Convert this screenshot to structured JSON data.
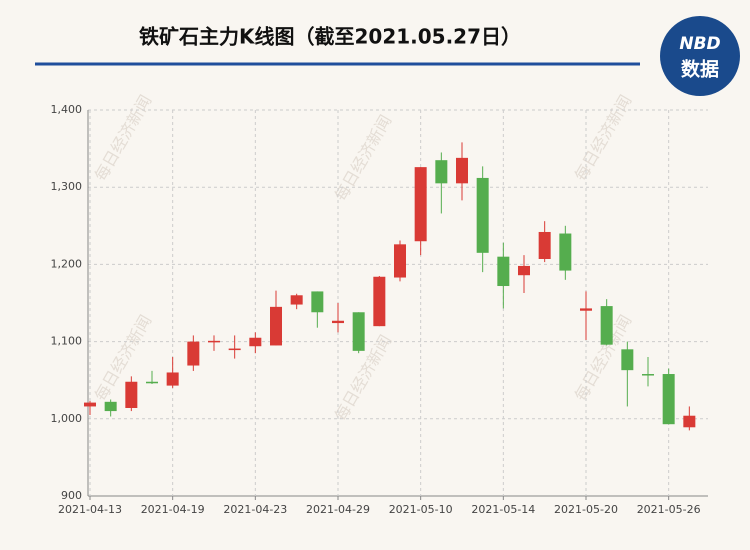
{
  "chart_data": {
    "type": "candlestick",
    "title": "铁矿石主力K线图（截至2021.05.27日）",
    "logo": {
      "top": "NBD",
      "bottom": "数据"
    },
    "watermark": "每日经济新闻",
    "x": [
      "2021-04-13",
      null,
      null,
      null,
      "2021-04-19",
      null,
      null,
      null,
      "2021-04-23",
      null,
      null,
      null,
      "2021-04-29",
      null,
      null,
      null,
      "2021-05-10",
      null,
      null,
      null,
      "2021-05-14",
      null,
      null,
      null,
      "2021-05-20",
      null,
      null,
      null,
      "2021-05-26",
      null
    ],
    "open": [
      1016,
      1022,
      1014,
      1048,
      1043,
      1069,
      1099,
      1089,
      1094,
      1095,
      1148,
      1165,
      1124,
      1138,
      1120,
      1183,
      1230,
      1335,
      1305,
      1312,
      1210,
      1186,
      1207,
      1240,
      1140,
      1146,
      1090,
      1058,
      1058,
      989
    ],
    "high": [
      1023,
      1025,
      1055,
      1062,
      1080,
      1108,
      1108,
      1108,
      1112,
      1166,
      1162,
      1165,
      1150,
      1138,
      1185,
      1231,
      1326,
      1345,
      1358,
      1327,
      1228,
      1212,
      1256,
      1250,
      1165,
      1155,
      1100,
      1080,
      1065,
      1016
    ],
    "low": [
      1005,
      1003,
      1010,
      1045,
      1040,
      1062,
      1088,
      1078,
      1085,
      1095,
      1142,
      1118,
      1112,
      1085,
      1120,
      1178,
      1212,
      1266,
      1283,
      1190,
      1143,
      1163,
      1203,
      1180,
      1102,
      1095,
      1016,
      1042,
      993,
      985
    ],
    "close": [
      1021,
      1010,
      1048,
      1046,
      1060,
      1100,
      1101,
      1091,
      1105,
      1145,
      1160,
      1138,
      1127,
      1088,
      1184,
      1226,
      1326,
      1305,
      1338,
      1215,
      1172,
      1198,
      1242,
      1192,
      1143,
      1096,
      1063,
      1057,
      993,
      1004
    ],
    "up_color": "#d93a35",
    "down_color": "#55ad4e",
    "ylim": [
      900,
      1400
    ],
    "yticks": [
      900,
      {
        "value": 1000,
        "label": "1,000"
      },
      {
        "value": 1100,
        "label": "1,100"
      },
      {
        "value": 1200,
        "label": "1,200"
      },
      {
        "value": 1300,
        "label": "1,300"
      },
      {
        "value": 1400,
        "label": "1,400"
      }
    ],
    "grid": true
  }
}
